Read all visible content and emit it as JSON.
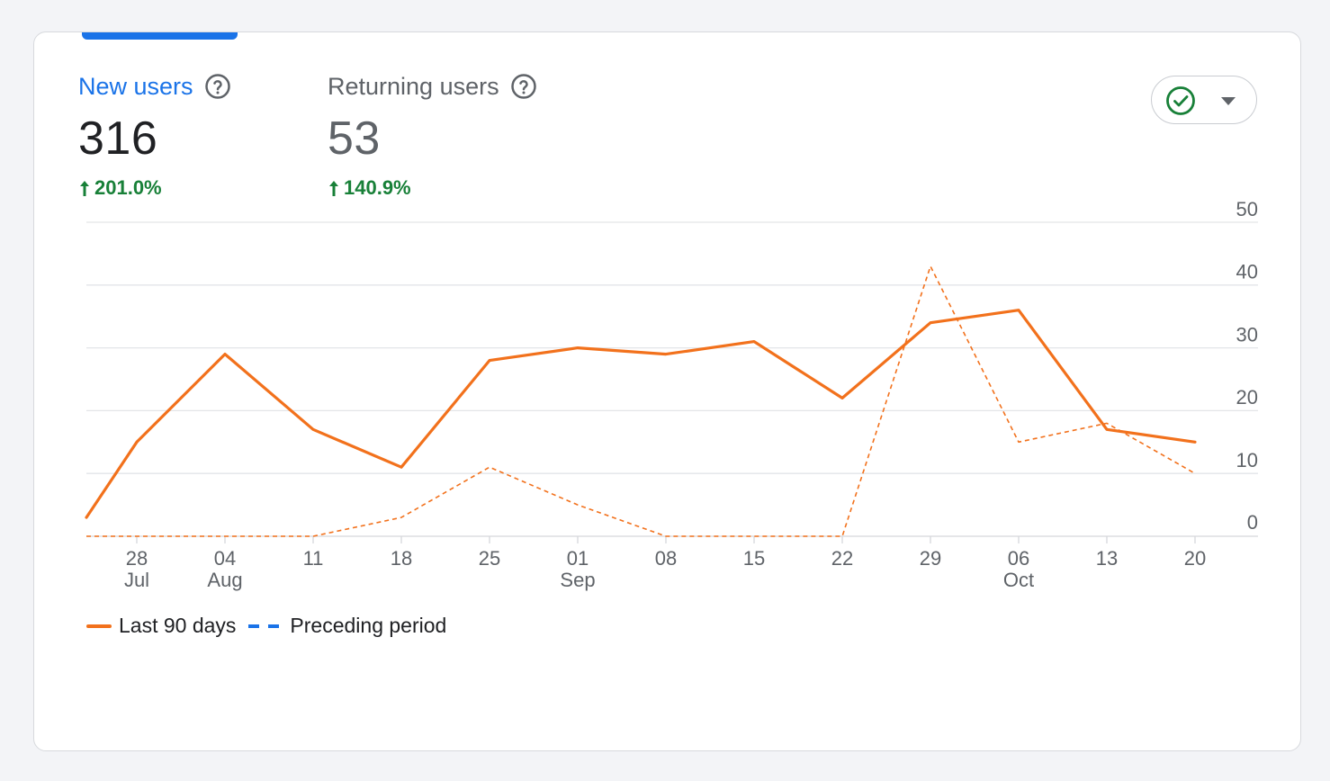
{
  "metrics": {
    "new_users": {
      "label": "New users",
      "value": "316",
      "change": "201.0%",
      "help_icon": "help-circle-icon",
      "trend_icon": "arrow-up-icon"
    },
    "returning_users": {
      "label": "Returning users",
      "value": "53",
      "change": "140.9%",
      "help_icon": "help-circle-icon",
      "trend_icon": "arrow-up-icon"
    }
  },
  "compare_toggle": {
    "icon": "check-circle-icon",
    "dropdown_icon": "caret-down-icon"
  },
  "colors": {
    "accent": "#1a73e8",
    "current_series": "#f2711c",
    "positive": "#188038",
    "grid": "#e3e5e8",
    "axis_text": "#5f6368"
  },
  "legend": {
    "current_label": "Last 90 days",
    "previous_label": "Preceding period"
  },
  "chart_data": {
    "type": "line",
    "x": [
      "2023-07-24",
      "2023-07-28",
      "2023-08-04",
      "2023-08-11",
      "2023-08-18",
      "2023-08-25",
      "2023-09-01",
      "2023-09-08",
      "2023-09-15",
      "2023-09-22",
      "2023-09-29",
      "2023-10-06",
      "2023-10-13",
      "2023-10-20"
    ],
    "x_tick_labels": [
      {
        "day": "28",
        "month": "Jul"
      },
      {
        "day": "04",
        "month": "Aug"
      },
      {
        "day": "11",
        "month": ""
      },
      {
        "day": "18",
        "month": ""
      },
      {
        "day": "25",
        "month": ""
      },
      {
        "day": "01",
        "month": "Sep"
      },
      {
        "day": "08",
        "month": ""
      },
      {
        "day": "15",
        "month": ""
      },
      {
        "day": "22",
        "month": ""
      },
      {
        "day": "29",
        "month": ""
      },
      {
        "day": "06",
        "month": "Oct"
      },
      {
        "day": "13",
        "month": ""
      },
      {
        "day": "20",
        "month": ""
      }
    ],
    "y_ticks": [
      0,
      10,
      20,
      30,
      40,
      50
    ],
    "ylim": [
      0,
      50
    ],
    "y_axis_position": "right",
    "grid": true,
    "legend_position": "bottom-left",
    "series": [
      {
        "name": "Last 90 days",
        "style": "solid",
        "values": [
          3,
          15,
          29,
          17,
          11,
          28,
          30,
          29,
          31,
          22,
          34,
          36,
          17,
          15
        ]
      },
      {
        "name": "Preceding period",
        "style": "dashed",
        "values": [
          0,
          0,
          0,
          0,
          3,
          11,
          5,
          0,
          0,
          0,
          43,
          15,
          18,
          10
        ]
      }
    ]
  }
}
